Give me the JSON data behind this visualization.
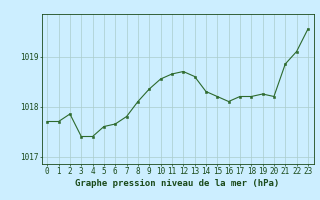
{
  "x": [
    0,
    1,
    2,
    3,
    4,
    5,
    6,
    7,
    8,
    9,
    10,
    11,
    12,
    13,
    14,
    15,
    16,
    17,
    18,
    19,
    20,
    21,
    22,
    23
  ],
  "y": [
    1017.7,
    1017.7,
    1017.85,
    1017.4,
    1017.4,
    1017.6,
    1017.65,
    1017.8,
    1018.1,
    1018.35,
    1018.55,
    1018.65,
    1018.7,
    1018.6,
    1018.3,
    1018.2,
    1018.1,
    1018.2,
    1018.2,
    1018.25,
    1018.2,
    1018.85,
    1019.1,
    1019.55
  ],
  "ylim": [
    1016.85,
    1019.85
  ],
  "yticks": [
    1017,
    1018,
    1019
  ],
  "xticks": [
    0,
    1,
    2,
    3,
    4,
    5,
    6,
    7,
    8,
    9,
    10,
    11,
    12,
    13,
    14,
    15,
    16,
    17,
    18,
    19,
    20,
    21,
    22,
    23
  ],
  "line_color": "#2d6a2d",
  "marker_color": "#2d6a2d",
  "bg_color": "#cceeff",
  "grid_color_v": "#aacccc",
  "grid_color_h": "#aacccc",
  "text_color": "#1a4a1a",
  "xlabel": "Graphe pression niveau de la mer (hPa)",
  "xlabel_fontsize": 6.5,
  "tick_fontsize": 5.5,
  "title": ""
}
